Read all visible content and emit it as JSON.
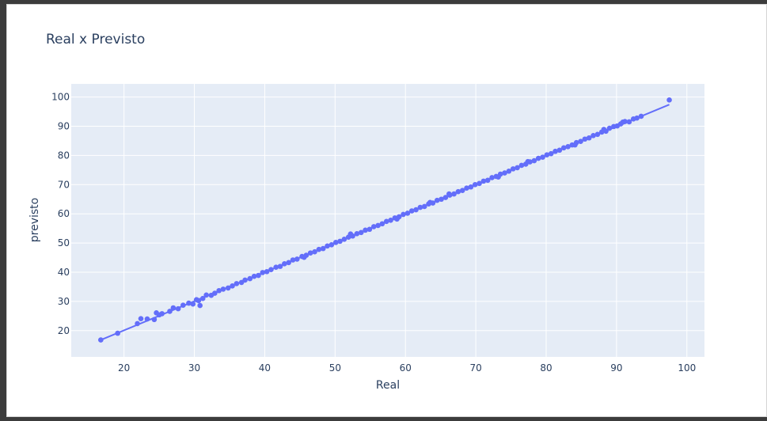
{
  "chart_data": {
    "type": "scatter",
    "title": "Real x Previsto",
    "xlabel": "Real",
    "ylabel": "previsto",
    "xlim": [
      12.5,
      102.5
    ],
    "ylim": [
      11,
      104.5
    ],
    "x_ticks": [
      20,
      30,
      40,
      50,
      60,
      70,
      80,
      90,
      100
    ],
    "y_ticks": [
      20,
      30,
      40,
      50,
      60,
      70,
      80,
      90,
      100
    ],
    "grid": true,
    "legend": "none",
    "colors": {
      "marker": "#636efa",
      "plot_background": "#e5ecf6",
      "grid": "#ffffff",
      "text": "#2a3f5f"
    },
    "trendline": {
      "x": [
        16.7,
        97.5
      ],
      "y": [
        16.8,
        97.4
      ]
    },
    "points": {
      "x": [
        16.7,
        19.1,
        21.9,
        22.4,
        23.3,
        24.3,
        24.6,
        25.0,
        25.4,
        26.5,
        27.0,
        27.7,
        28.4,
        29.2,
        29.8,
        30.3,
        30.6,
        31.2,
        31.7,
        32.4,
        32.9,
        33.5,
        34.1,
        34.8,
        35.4,
        36.0,
        36.7,
        37.2,
        37.9,
        38.5,
        39.1,
        39.7,
        40.3,
        40.9,
        41.6,
        42.2,
        42.8,
        43.4,
        44.0,
        44.6,
        45.3,
        45.9,
        46.5,
        47.1,
        47.7,
        48.3,
        48.9,
        49.5,
        50.1,
        50.7,
        51.3,
        51.9,
        52.5,
        53.1,
        53.7,
        54.3,
        54.9,
        55.5,
        56.1,
        56.7,
        57.3,
        57.9,
        58.5,
        59.1,
        59.7,
        60.3,
        60.9,
        61.5,
        62.1,
        62.7,
        63.3,
        63.9,
        64.5,
        65.1,
        65.7,
        66.3,
        66.9,
        67.5,
        68.1,
        68.7,
        69.3,
        69.9,
        70.5,
        71.1,
        71.7,
        72.3,
        72.9,
        73.5,
        74.1,
        74.7,
        75.3,
        75.9,
        76.5,
        77.1,
        77.7,
        78.3,
        78.9,
        79.5,
        80.1,
        80.7,
        81.3,
        81.9,
        82.5,
        83.1,
        83.7,
        84.3,
        84.9,
        85.5,
        86.1,
        86.7,
        87.3,
        87.9,
        88.5,
        89.0,
        89.6,
        90.1,
        90.6,
        91.2,
        91.8,
        92.4,
        92.9,
        93.5,
        97.5,
        30.8,
        45.6,
        52.2,
        58.8,
        63.5,
        66.2,
        73.2,
        77.4,
        84.1,
        88.2,
        90.9
      ],
      "y": [
        16.8,
        19.1,
        22.4,
        24.1,
        24.0,
        23.8,
        26.1,
        25.4,
        25.8,
        26.6,
        27.8,
        27.5,
        28.7,
        29.4,
        29.1,
        30.6,
        30.3,
        31.0,
        32.2,
        32.1,
        32.8,
        33.7,
        34.2,
        34.6,
        35.3,
        36.1,
        36.5,
        37.3,
        37.8,
        38.6,
        38.9,
        39.9,
        40.2,
        40.9,
        41.7,
        42.0,
        42.9,
        43.3,
        44.2,
        44.5,
        45.4,
        45.8,
        46.6,
        47.0,
        47.8,
        48.1,
        49.0,
        49.4,
        50.2,
        50.6,
        51.3,
        52.0,
        52.4,
        53.2,
        53.6,
        54.4,
        54.7,
        55.6,
        56.0,
        56.6,
        57.4,
        57.8,
        58.6,
        59.0,
        59.8,
        60.2,
        61.0,
        61.4,
        62.2,
        62.5,
        63.4,
        63.7,
        64.6,
        65.0,
        65.6,
        66.4,
        66.8,
        67.6,
        68.0,
        68.8,
        69.2,
        70.0,
        70.4,
        71.2,
        71.5,
        72.4,
        72.8,
        73.6,
        74.0,
        74.6,
        75.4,
        75.8,
        76.6,
        77.0,
        77.8,
        78.2,
        79.0,
        79.4,
        80.2,
        80.6,
        81.4,
        81.8,
        82.6,
        83.0,
        83.6,
        84.4,
        84.8,
        85.6,
        86.0,
        86.8,
        87.2,
        88.0,
        88.3,
        89.3,
        89.9,
        90.1,
        90.8,
        91.6,
        91.5,
        92.5,
        92.8,
        93.4,
        99.0,
        28.6,
        45.1,
        53.1,
        58.2,
        63.9,
        66.8,
        72.6,
        77.9,
        83.6,
        88.9,
        91.4
      ]
    }
  }
}
